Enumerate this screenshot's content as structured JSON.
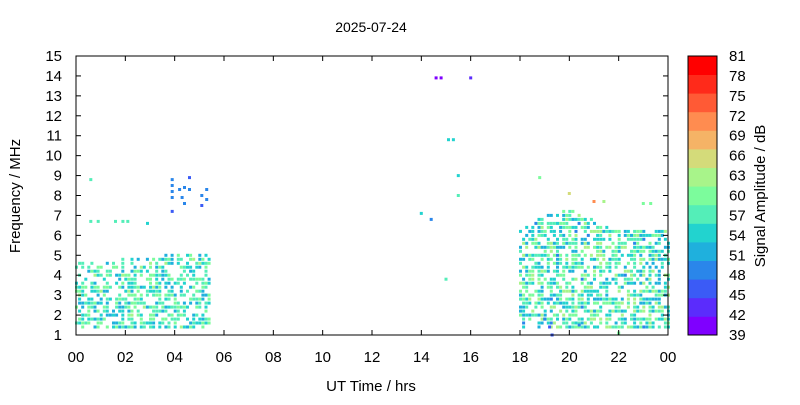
{
  "chart_data": {
    "type": "heatmap",
    "title": "2025-07-24",
    "xlabel": "UT Time / hrs",
    "ylabel": "Frequency / MHz",
    "colorbar_label": "Signal Amplitude / dB",
    "x_ticks": [
      "00",
      "02",
      "04",
      "06",
      "08",
      "10",
      "12",
      "14",
      "16",
      "18",
      "20",
      "22",
      "00"
    ],
    "xlim": [
      0,
      24
    ],
    "y_ticks": [
      "1",
      "2",
      "3",
      "4",
      "5",
      "6",
      "7",
      "8",
      "9",
      "10",
      "11",
      "12",
      "13",
      "14",
      "15"
    ],
    "ylim": [
      1,
      15
    ],
    "colorbar_ticks": [
      "39",
      "42",
      "45",
      "48",
      "51",
      "54",
      "57",
      "60",
      "63",
      "66",
      "69",
      "72",
      "75",
      "78",
      "81"
    ],
    "color_range": [
      39,
      81
    ],
    "colorscale": [
      "#7f00ff",
      "#5b2cfc",
      "#3b5bf6",
      "#2a86ea",
      "#1fb0dd",
      "#22d3cf",
      "#54eeb8",
      "#7cfc9c",
      "#a8f48a",
      "#d4db7a",
      "#f5b366",
      "#ff8c50",
      "#ff5a35",
      "#ff2a1a",
      "#ff0000"
    ],
    "points": [
      {
        "x": 0.6,
        "y": 8.8,
        "v": 58
      },
      {
        "x": 0.6,
        "y": 6.7,
        "v": 56
      },
      {
        "x": 0.9,
        "y": 6.7,
        "v": 56
      },
      {
        "x": 1.6,
        "y": 6.7,
        "v": 56
      },
      {
        "x": 1.9,
        "y": 6.7,
        "v": 56
      },
      {
        "x": 2.1,
        "y": 6.7,
        "v": 56
      },
      {
        "x": 2.9,
        "y": 6.6,
        "v": 53
      },
      {
        "x": 3.9,
        "y": 8.8,
        "v": 50
      },
      {
        "x": 3.9,
        "y": 8.5,
        "v": 49
      },
      {
        "x": 3.9,
        "y": 8.2,
        "v": 49
      },
      {
        "x": 3.9,
        "y": 7.9,
        "v": 48
      },
      {
        "x": 3.9,
        "y": 7.2,
        "v": 47
      },
      {
        "x": 4.2,
        "y": 8.3,
        "v": 49
      },
      {
        "x": 4.3,
        "y": 7.9,
        "v": 48
      },
      {
        "x": 4.4,
        "y": 8.4,
        "v": 50
      },
      {
        "x": 4.4,
        "y": 7.6,
        "v": 48
      },
      {
        "x": 4.6,
        "y": 8.9,
        "v": 47
      },
      {
        "x": 4.6,
        "y": 8.3,
        "v": 49
      },
      {
        "x": 5.1,
        "y": 8.0,
        "v": 48
      },
      {
        "x": 5.1,
        "y": 7.5,
        "v": 47
      },
      {
        "x": 5.3,
        "y": 8.3,
        "v": 49
      },
      {
        "x": 5.3,
        "y": 7.8,
        "v": 48
      },
      {
        "x": 14.6,
        "y": 13.9,
        "v": 39
      },
      {
        "x": 14.8,
        "y": 13.9,
        "v": 39
      },
      {
        "x": 16.0,
        "y": 13.9,
        "v": 42
      },
      {
        "x": 15.1,
        "y": 10.8,
        "v": 55
      },
      {
        "x": 15.3,
        "y": 10.8,
        "v": 55
      },
      {
        "x": 15.5,
        "y": 9.0,
        "v": 53
      },
      {
        "x": 15.5,
        "y": 8.0,
        "v": 57
      },
      {
        "x": 14.0,
        "y": 7.1,
        "v": 53
      },
      {
        "x": 14.4,
        "y": 6.8,
        "v": 48
      },
      {
        "x": 15.0,
        "y": 3.8,
        "v": 58
      },
      {
        "x": 18.8,
        "y": 8.9,
        "v": 61
      },
      {
        "x": 20.0,
        "y": 8.1,
        "v": 66
      },
      {
        "x": 21.0,
        "y": 7.7,
        "v": 72
      },
      {
        "x": 21.4,
        "y": 7.7,
        "v": 63
      },
      {
        "x": 23.0,
        "y": 7.6,
        "v": 60
      },
      {
        "x": 23.3,
        "y": 7.6,
        "v": 60
      },
      {
        "x": 22.0,
        "y": 1.1,
        "v": 60
      },
      {
        "x": 19.0,
        "y": 1.8,
        "v": 48
      },
      {
        "x": 19.2,
        "y": 1.4,
        "v": 46
      },
      {
        "x": 19.3,
        "y": 1.0,
        "v": 45
      },
      {
        "x": 20.4,
        "y": 1.5,
        "v": 49
      }
    ],
    "clusters": [
      {
        "x0": 0.0,
        "x1": 5.4,
        "y0": 1.4,
        "y1": 4.6,
        "y1_end": 5.2,
        "v_low": 51,
        "v_high": 62,
        "density": 0.55
      },
      {
        "x0": 18.0,
        "x1": 24.0,
        "y0": 1.4,
        "y1": 6.4,
        "y1_end": 5.0,
        "peak_top": 7.4,
        "v_low": 50,
        "v_high": 63,
        "density": 0.6
      }
    ]
  }
}
